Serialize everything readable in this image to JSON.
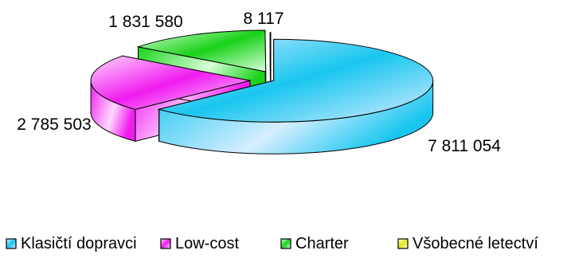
{
  "chart_data": {
    "type": "pie",
    "three_d": true,
    "exploded": true,
    "title": "",
    "legend_position": "bottom",
    "series": [
      {
        "name": "Klasičtí dopravci",
        "value": 7811054,
        "label": "7 811 054",
        "color_light": "#d6eeff",
        "color_dark": "#19c6ef"
      },
      {
        "name": "Low-cost",
        "value": 2785503,
        "label": "2 785 503",
        "color_light": "#ffd8ff",
        "color_dark": "#f01cf0"
      },
      {
        "name": "Charter",
        "value": 1831580,
        "label": "1 831 580",
        "color_light": "#d8ffd8",
        "color_dark": "#19d219"
      },
      {
        "name": "Všobecné letectví",
        "value": 8117,
        "label": "8 117",
        "color_light": "#ffffd8",
        "color_dark": "#e6e61a"
      }
    ]
  }
}
